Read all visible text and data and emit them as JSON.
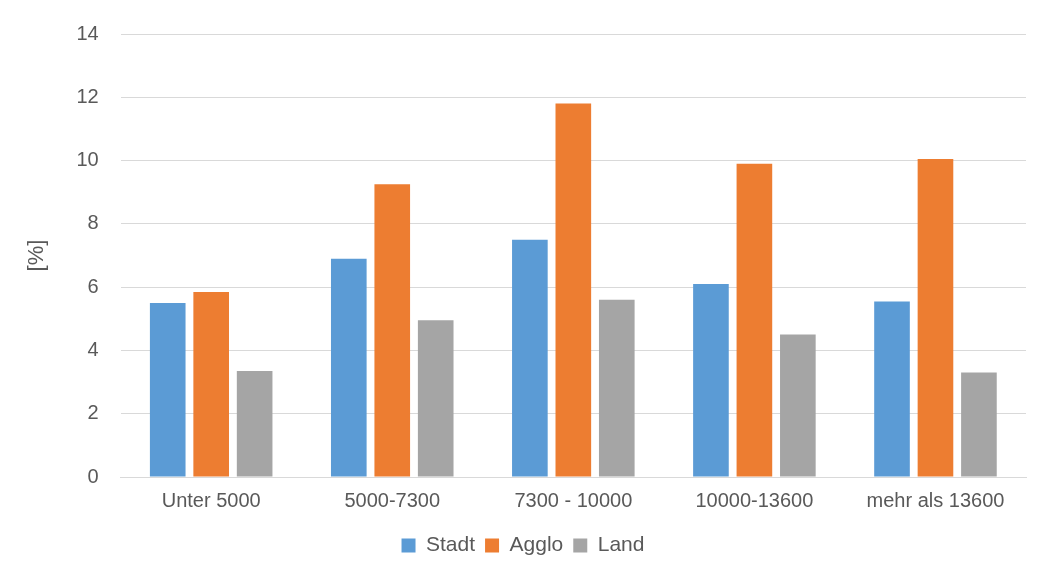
{
  "chart_data": {
    "type": "bar",
    "ylabel": "[%]",
    "categories": [
      "Unter 5000",
      "5000-7300",
      "7300 - 10000",
      "10000-13600",
      "mehr als 13600"
    ],
    "series": [
      {
        "name": "Stadt",
        "color": "#5b9bd5",
        "values": [
          5.5,
          6.9,
          7.5,
          6.1,
          5.55
        ]
      },
      {
        "name": "Agglo",
        "color": "#ed7d31",
        "values": [
          5.85,
          9.25,
          11.8,
          9.9,
          10.05
        ]
      },
      {
        "name": "Land",
        "color": "#a5a5a5",
        "values": [
          3.35,
          4.95,
          5.6,
          4.5,
          3.3
        ]
      }
    ],
    "ylim": [
      0,
      14
    ],
    "yticks": [
      0,
      2,
      4,
      6,
      8,
      10,
      12,
      14
    ],
    "grid": "y",
    "legend": "bottom"
  }
}
